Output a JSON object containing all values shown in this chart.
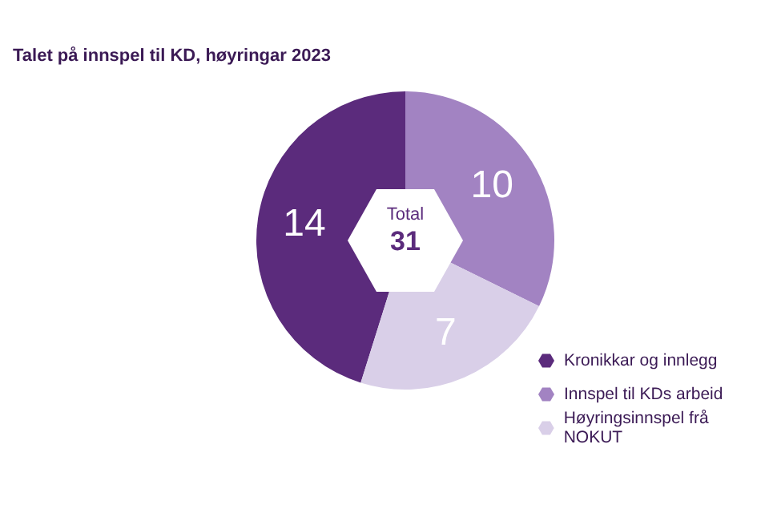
{
  "chart_data": {
    "type": "donut",
    "title": "Talet på innspel til KD, høyringar 2023",
    "categories": [
      "Kronikkar og innlegg",
      "Innspel til KDs arbeid",
      "Høyringsinnspel frå NOKUT"
    ],
    "values": [
      14,
      10,
      7
    ],
    "colors": [
      "#5b2b7c",
      "#a283c2",
      "#d9cfe8"
    ],
    "data_labels": true,
    "legend": "bottom right",
    "annotations": [
      "Total",
      "31"
    ]
  }
}
